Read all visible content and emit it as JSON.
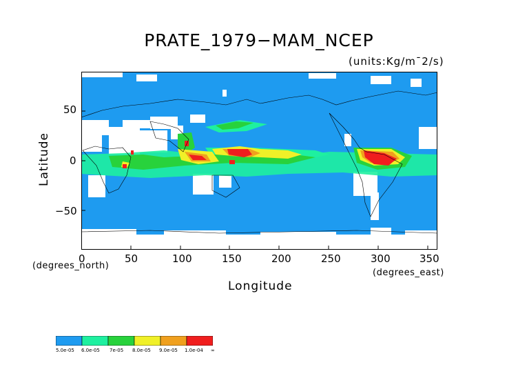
{
  "title": "PRATE_1979−MAM_NCEP",
  "units": "(units:Kg/m¯2/s)",
  "x_axis": {
    "label": "Longitude",
    "units": "(degrees_east)",
    "ticks": [
      "0",
      "50",
      "100",
      "150",
      "200",
      "250",
      "300",
      "350"
    ]
  },
  "y_axis": {
    "label": "Latitude",
    "units": "(degrees_north)",
    "ticks": [
      "50",
      "0",
      "−50"
    ]
  },
  "legend": {
    "labels": [
      "5.0e-05",
      "6.0e-05",
      "7e-05",
      "8.0e-05",
      "9.0e-05",
      "1.0e-04",
      "∞"
    ],
    "colors": [
      "#1e9bf0",
      "#1ef0a0",
      "#28d23c",
      "#f0f028",
      "#f0a01e",
      "#f01e1e"
    ]
  },
  "map_colors": {
    "background": "#1e9bf0",
    "missing": "#ffffff",
    "coast": "#000000",
    "levels": [
      "#1ef0a0",
      "#28d23c",
      "#f0f028",
      "#f0a01e",
      "#f01e1e"
    ]
  },
  "chart_data": {
    "type": "heatmap",
    "title": "PRATE_1979−MAM_NCEP",
    "xlabel": "Longitude",
    "ylabel": "Latitude",
    "xlim": [
      0,
      360
    ],
    "ylim": [
      -90,
      90
    ],
    "x_ticks": [
      0,
      50,
      100,
      150,
      200,
      250,
      300,
      350
    ],
    "y_ticks": [
      -50,
      0,
      50
    ],
    "color_levels": [
      5e-05,
      6e-05,
      7e-05,
      8e-05,
      9e-05,
      0.0001
    ],
    "features": [
      {
        "level": 5,
        "lon": [
          140,
          190
        ],
        "lat": [
          5,
          10
        ]
      },
      {
        "level": 5,
        "lon": [
          280,
          330
        ],
        "lat": [
          -10,
          5
        ]
      },
      {
        "level": 3,
        "lon": [
          130,
          250
        ],
        "lat": [
          2,
          12
        ]
      },
      {
        "level": 2,
        "lon": [
          95,
          160
        ],
        "lat": [
          -10,
          5
        ]
      },
      {
        "level": 2,
        "lon": [
          130,
          165
        ],
        "lat": [
          28,
          38
        ]
      },
      {
        "level": 1,
        "lon": [
          20,
          120
        ],
        "lat": [
          -20,
          0
        ]
      }
    ]
  }
}
